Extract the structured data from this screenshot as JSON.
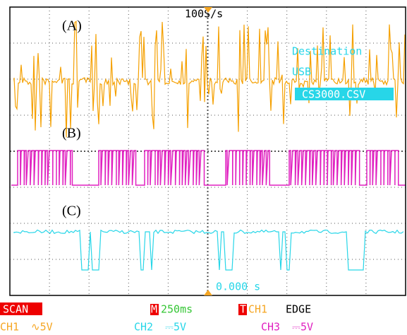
{
  "screen": {
    "sample_rate": "100S/s",
    "trace_labels": [
      "(A)",
      "(B)",
      "(C)"
    ],
    "destination": {
      "title": "Destination",
      "device": "USB",
      "file": "CS3000.CSV"
    },
    "trigger_time": "0.000 s"
  },
  "status": {
    "mode": "SCAN",
    "timebase_marker": "M",
    "timebase": "250ms",
    "trigger_marker": "T",
    "trigger_source": "CH1",
    "trigger_type": "EDGE"
  },
  "channels": [
    {
      "name": "CH1",
      "scale": "∿5V"
    },
    {
      "name": "CH2",
      "scale": "⎓5V"
    },
    {
      "name": "CH3",
      "scale": "⎓5V"
    }
  ]
}
